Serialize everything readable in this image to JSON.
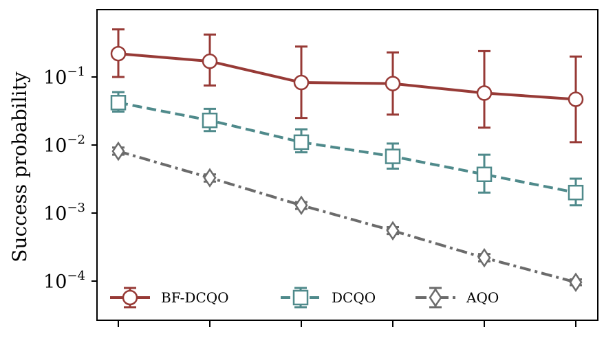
{
  "chart_data": {
    "type": "line",
    "ylabel": "Success probability",
    "xlabel": "",
    "yscale": "log",
    "ylim": [
      6e-05,
      1.0
    ],
    "x": [
      1,
      2,
      3,
      4,
      5,
      6
    ],
    "y_ticks": [
      {
        "value": 0.1,
        "base": "10",
        "exp": "−1"
      },
      {
        "value": 0.01,
        "base": "10",
        "exp": "−2"
      },
      {
        "value": 0.001,
        "base": "10",
        "exp": "−3"
      },
      {
        "value": 0.0001,
        "base": "10",
        "exp": "−4"
      }
    ],
    "grid": false,
    "legend_placement": "bottom",
    "series": [
      {
        "name": "BF-DCQO",
        "color": "#973a36",
        "marker": "circle",
        "linestyle": "solid",
        "values": [
          0.22,
          0.17,
          0.083,
          0.08,
          0.058,
          0.047
        ],
        "err_low": [
          0.1,
          0.075,
          0.025,
          0.028,
          0.018,
          0.011
        ],
        "err_high": [
          0.5,
          0.42,
          0.28,
          0.23,
          0.24,
          0.2
        ]
      },
      {
        "name": "DCQO",
        "color": "#4f8a8b",
        "marker": "square",
        "linestyle": "dashed",
        "values": [
          0.042,
          0.023,
          0.011,
          0.0068,
          0.0037,
          0.002
        ],
        "err_low": [
          0.031,
          0.016,
          0.0078,
          0.0045,
          0.002,
          0.0013
        ],
        "err_high": [
          0.06,
          0.034,
          0.017,
          0.0105,
          0.0072,
          0.0032
        ]
      },
      {
        "name": "AQO",
        "color": "#6b6b6b",
        "marker": "diamond",
        "linestyle": "dashdot",
        "values": [
          0.0081,
          0.0033,
          0.0013,
          0.00055,
          0.00022,
          9.6e-05
        ],
        "err_low": [
          0.0072,
          0.0029,
          0.00115,
          0.00049,
          0.000195,
          8.7e-05
        ],
        "err_high": [
          0.0092,
          0.0037,
          0.00145,
          0.00062,
          0.00025,
          0.000106
        ]
      }
    ]
  }
}
